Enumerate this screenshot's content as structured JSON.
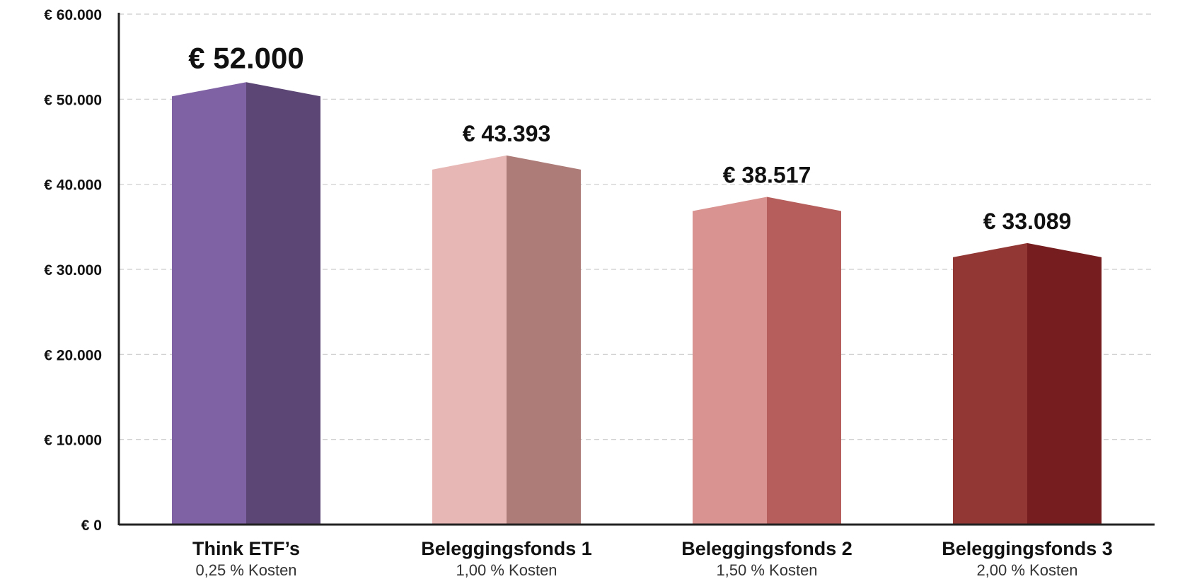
{
  "chart_data": {
    "type": "bar",
    "title": "",
    "xlabel": "",
    "ylabel": "",
    "ylim": [
      0,
      60000
    ],
    "yticks": [
      0,
      10000,
      20000,
      30000,
      40000,
      50000,
      60000
    ],
    "ytick_labels": [
      "€ 0",
      "€ 10.000",
      "€ 20.000",
      "€ 30.000",
      "€ 40.000",
      "€ 50.000",
      "€ 60.000"
    ],
    "grid": true,
    "categories": [
      "Think ETF’s",
      "Beleggingsfonds 1",
      "Beleggingsfonds 2",
      "Beleggingsfonds 3"
    ],
    "subtitles": [
      "0,25 % Kosten",
      "1,00 % Kosten",
      "1,50 % Kosten",
      "2,00 % Kosten"
    ],
    "values": [
      52000,
      43393,
      38517,
      33089
    ],
    "value_labels": [
      "€ 52.000",
      "€ 43.393",
      "€ 38.517",
      "€ 33.089"
    ],
    "colors_light": [
      "#7f62a3",
      "#e6b7b5",
      "#d99391",
      "#933735"
    ],
    "colors_dark": [
      "#5b4675",
      "#ad7b78",
      "#b65e5b",
      "#761e1f"
    ],
    "axis_color": "#222222",
    "grid_color": "#cccccc"
  }
}
